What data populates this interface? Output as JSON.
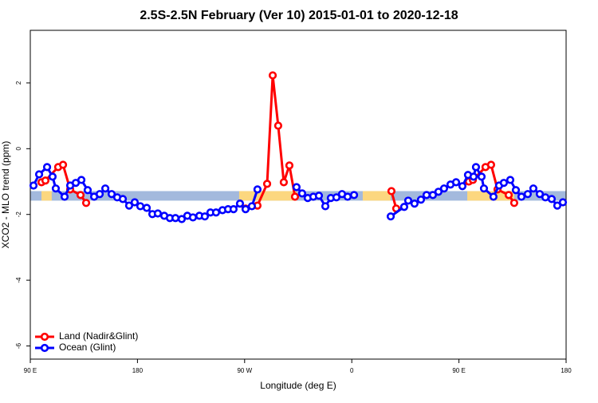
{
  "chart_data": {
    "type": "line",
    "title": "2.5S-2.5N February (Ver 10)   2015-01-01 to 2020-12-18",
    "xlabel": "Longitude (deg E)",
    "ylabel": "XCO2 - MLO trend (ppm)",
    "xlim": [
      90,
      540
    ],
    "ylim": [
      -6.4,
      3.6
    ],
    "xticks": [
      {
        "value": 90,
        "label": "90 E"
      },
      {
        "value": 180,
        "label": "180"
      },
      {
        "value": 270,
        "label": "90 W"
      },
      {
        "value": 360,
        "label": "0"
      },
      {
        "value": 450,
        "label": "90 E"
      },
      {
        "value": 540,
        "label": "180"
      }
    ],
    "yticks": [
      2,
      0,
      -2,
      -4,
      -6
    ],
    "legend": "bottomleft",
    "band": {
      "ylim": [
        -1.58,
        -1.29
      ],
      "color": "#a3b9dd",
      "highlight_color": "#fcd77f",
      "highlights": [
        [
          99.4,
          108
        ],
        [
          265.4,
          313.7
        ],
        [
          369.2,
          392.7
        ],
        [
          457,
          496.5
        ]
      ]
    },
    "series": [
      {
        "name": "Land (Nadir&Glint)",
        "color": "#ff0000",
        "x": [
          99.4,
          102.7,
          113.4,
          117.5,
          123.5,
          132.2,
          136.9,
          null,
          270.8,
          280.8,
          288.9,
          293.6,
          298.2,
          302.9,
          307.6,
          312.3,
          null,
          393.3,
          397.3,
          null,
          458.3,
          461.7,
          472.3,
          477.0,
          482.4,
          491.8,
          496.4
        ],
        "values": [
          -1.02,
          -0.97,
          -0.56,
          -0.49,
          -1.24,
          -1.41,
          -1.65,
          null,
          -1.82,
          -1.73,
          -1.07,
          2.23,
          0.7,
          -1.02,
          -0.51,
          -1.46,
          null,
          -1.29,
          -1.82,
          null,
          -1.0,
          -0.95,
          -0.56,
          -0.49,
          -1.24,
          -1.41,
          -1.65
        ]
      },
      {
        "name": "Ocean (Glint)",
        "color": "#0000ff",
        "x": [
          92.7,
          97.4,
          104.1,
          108.7,
          111.4,
          118.8,
          123.5,
          128.2,
          132.9,
          138.2,
          143.6,
          148.3,
          153.0,
          158.3,
          163.0,
          167.7,
          173.0,
          177.7,
          182.4,
          187.8,
          192.5,
          197.1,
          202.5,
          207.2,
          211.9,
          217.2,
          221.9,
          226.6,
          232.0,
          236.6,
          241.3,
          246.0,
          251.4,
          256.1,
          260.7,
          266.1,
          270.8,
          276.1,
          280.8,
          null,
          313.6,
          318.3,
          323.0,
          327.7,
          332.4,
          337.8,
          342.4,
          347.1,
          351.8,
          356.5,
          361.9,
          null,
          392.7,
          404.0,
          407.4,
          412.7,
          418.1,
          422.8,
          428.1,
          432.8,
          437.5,
          442.9,
          447.6,
          452.9,
          457.6,
          462.3,
          464.3,
          469.0,
          471.0,
          479.0,
          483.7,
          487.7,
          493.1,
          497.8,
          502.5,
          507.8,
          512.5,
          517.9,
          522.6,
          527.9,
          532.6,
          537.3
        ],
        "values": [
          -1.12,
          -0.78,
          -0.56,
          -0.85,
          -1.21,
          -1.46,
          -1.12,
          -1.04,
          -0.95,
          -1.26,
          -1.46,
          -1.38,
          -1.21,
          -1.38,
          -1.48,
          -1.53,
          -1.73,
          -1.63,
          -1.75,
          -1.8,
          -1.99,
          -1.97,
          -2.04,
          -2.11,
          -2.11,
          -2.14,
          -2.04,
          -2.09,
          -2.04,
          -2.06,
          -1.94,
          -1.94,
          -1.87,
          -1.84,
          -1.84,
          -1.67,
          -1.84,
          -1.75,
          -1.24,
          null,
          -1.17,
          -1.36,
          -1.5,
          -1.46,
          -1.43,
          -1.75,
          -1.5,
          -1.48,
          -1.38,
          -1.46,
          -1.41,
          null,
          -2.06,
          -1.77,
          -1.58,
          -1.67,
          -1.55,
          -1.41,
          -1.41,
          -1.31,
          -1.21,
          -1.09,
          -1.02,
          -1.14,
          -0.8,
          -0.85,
          -0.56,
          -0.85,
          -1.21,
          -1.46,
          -1.12,
          -1.04,
          -0.95,
          -1.26,
          -1.46,
          -1.38,
          -1.21,
          -1.38,
          -1.48,
          -1.53,
          -1.73,
          -1.63
        ]
      }
    ]
  }
}
